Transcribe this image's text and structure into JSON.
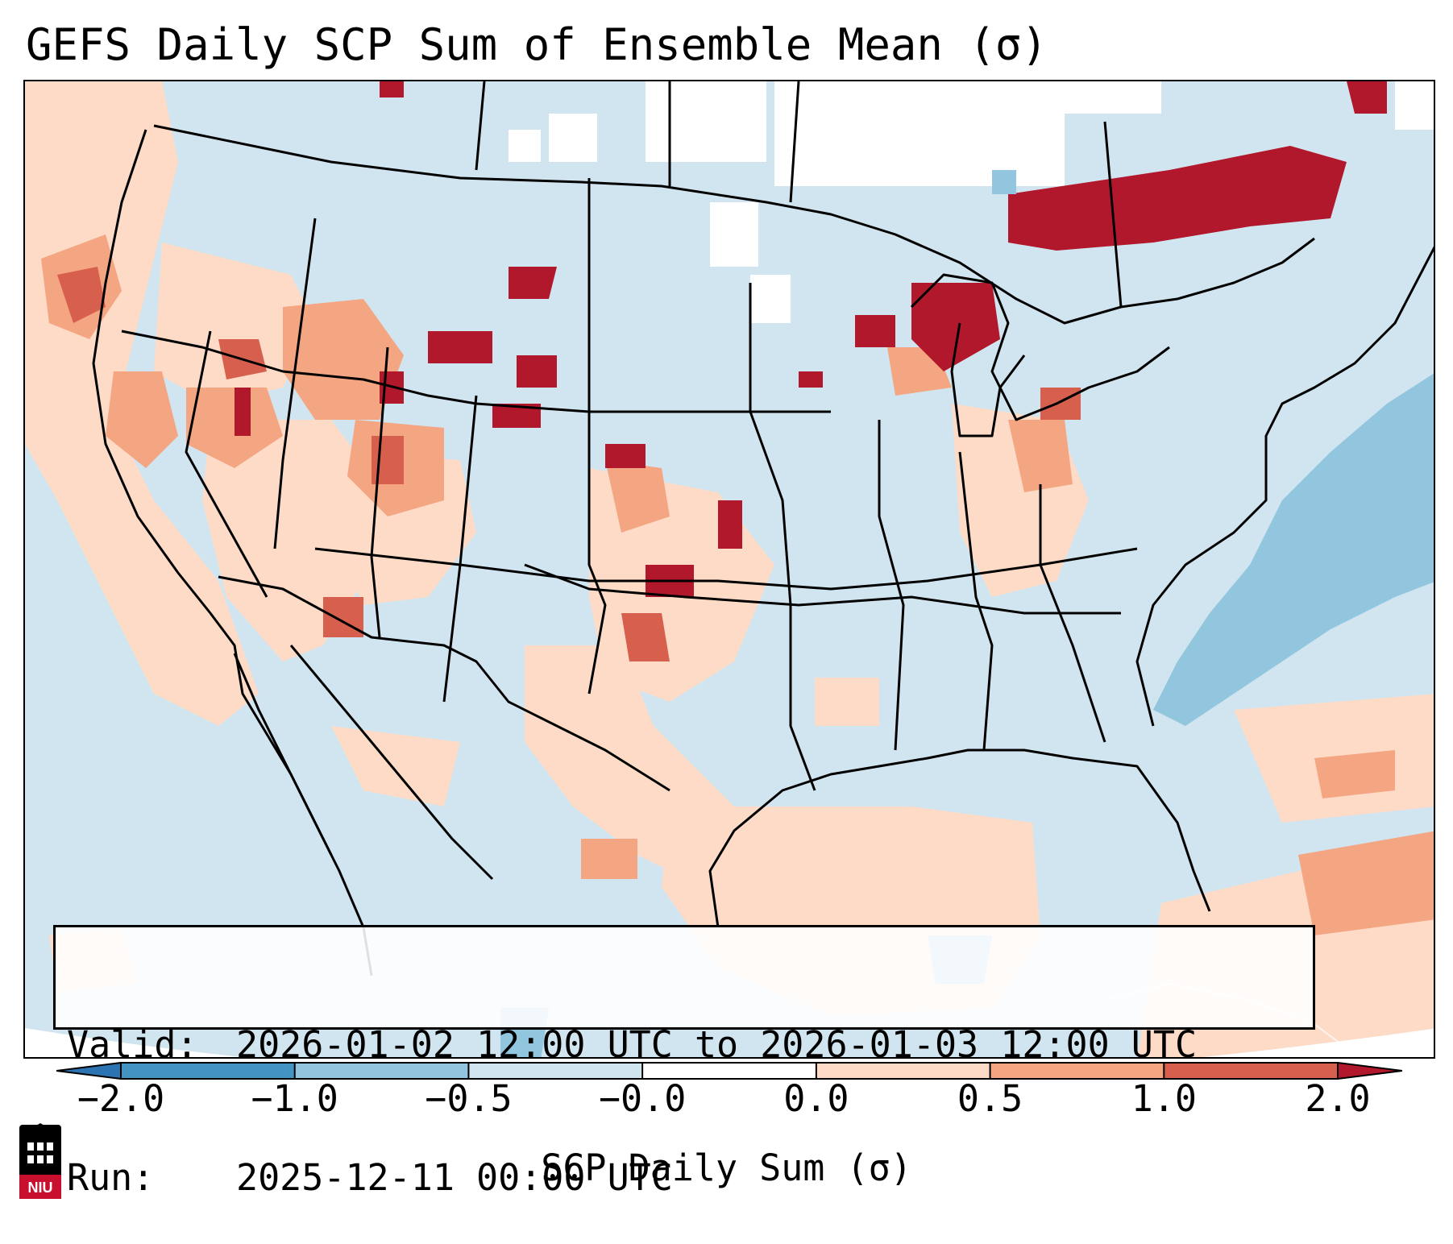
{
  "title": "GEFS Daily SCP Sum of Ensemble Mean (σ)",
  "info": {
    "valid_label": "Valid:",
    "valid_value": "2026-01-02 12:00 UTC to 2026-01-03 12:00 UTC",
    "run_label": "Run:",
    "run_value": "2025-12-11 00:00 UTC"
  },
  "colorbar": {
    "label": "SCP Daily Sum (σ)",
    "ticks": [
      "−2.0",
      "−1.0",
      "−0.5",
      "−0.0",
      "0.0",
      "0.5",
      "1.0",
      "2.0"
    ],
    "colors": [
      "#2c73b2",
      "#4393c3",
      "#92c5de",
      "#d1e5f0",
      "#ffffff",
      "#fddbc7",
      "#f4a582",
      "#d6604d",
      "#b2182b"
    ],
    "extend": "both"
  },
  "map": {
    "region": "Contiguous United States",
    "background_color": "#d1e5f0",
    "hotspots": [
      {
        "region": "Pacific Northwest coast",
        "level": 1
      },
      {
        "region": "Nevada",
        "level": 2
      },
      {
        "region": "Utah",
        "level": 2
      },
      {
        "region": "Wyoming",
        "level": 2
      },
      {
        "region": "Eastern Colorado / Western Kansas",
        "level": 3
      },
      {
        "region": "Texas Panhandle",
        "level": 3
      },
      {
        "region": "Wisconsin / Upper Michigan",
        "level": 3
      },
      {
        "region": "Southern Ontario / Quebec",
        "level": 3
      },
      {
        "region": "Western Atlantic",
        "level": -1
      },
      {
        "region": "Gulf of Mexico",
        "level": 1
      }
    ]
  },
  "logo": {
    "text": "NIU",
    "color": "#c8102e"
  }
}
